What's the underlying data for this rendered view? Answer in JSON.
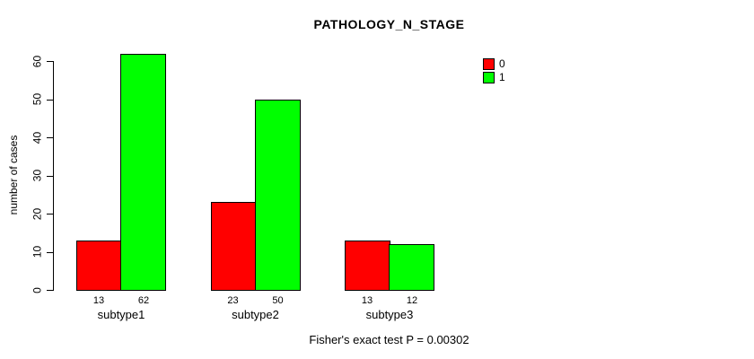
{
  "title": "PATHOLOGY_N_STAGE",
  "footer": "Fisher's exact test P = 0.00302",
  "chart_data": {
    "type": "bar",
    "title": "PATHOLOGY_N_STAGE",
    "xlabel": "",
    "ylabel": "number of cases",
    "categories": [
      "subtype1",
      "subtype2",
      "subtype3"
    ],
    "series": [
      {
        "name": "0",
        "color": "#ff0000",
        "values": [
          13,
          23,
          13
        ]
      },
      {
        "name": "1",
        "color": "#00ff00",
        "values": [
          62,
          50,
          12
        ]
      }
    ],
    "bar_value_labels": [
      [
        "13",
        "62"
      ],
      [
        "23",
        "50"
      ],
      [
        "13",
        "12"
      ]
    ],
    "ylim": [
      0,
      62
    ],
    "yticks": [
      0,
      10,
      20,
      30,
      40,
      50,
      60
    ],
    "grid": false,
    "legend_position": "top-right",
    "bar_border_color": "#000000",
    "annotation": "Fisher's exact test P = 0.00302"
  }
}
